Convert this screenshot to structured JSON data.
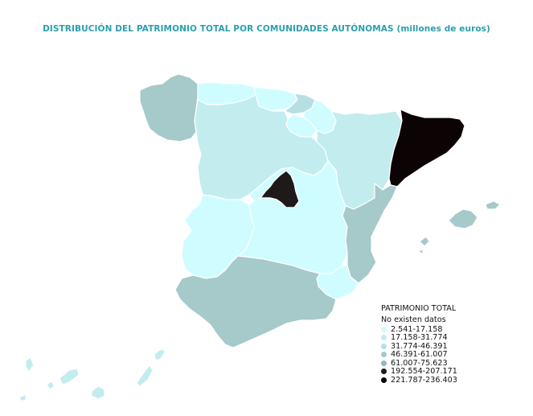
{
  "title": "DISTRIBUCIÓN DEL PATRIMONIO TOTAL POR COMUNIDADES AUTÓNOMAS (millones de euros)",
  "colors": {
    "title": "#2a9fae",
    "c1": "#cffdff",
    "c2": "#c3ecef",
    "c3": "#b7dfe3",
    "c4": "#a6c9ca",
    "c5": "#9ab5b6",
    "c6": "#1f1a1a",
    "c7": "#0c0404"
  },
  "legend": {
    "title": "PATRIMONIO TOTAL",
    "no_data": "No existen datos",
    "items": [
      {
        "label": "2.541-17.158",
        "color": "#cffdff"
      },
      {
        "label": "17.158-31.774",
        "color": "#c3ecef"
      },
      {
        "label": "31.774-46.391",
        "color": "#b7dfe3"
      },
      {
        "label": "46.391-61.007",
        "color": "#a6c9ca"
      },
      {
        "label": "61.007-75.623",
        "color": "#9ab5b6"
      },
      {
        "label": "192.554-207.171",
        "color": "#1f1a1a"
      },
      {
        "label": "221.787-236.403",
        "color": "#0c0404"
      }
    ]
  },
  "regions": [
    {
      "name": "galicia",
      "class": "46.391-61.007"
    },
    {
      "name": "asturias",
      "class": "2.541-17.158"
    },
    {
      "name": "cantabria",
      "class": "2.541-17.158"
    },
    {
      "name": "pais-vasco",
      "class": "31.774-46.391"
    },
    {
      "name": "navarra",
      "class": "2.541-17.158"
    },
    {
      "name": "la-rioja",
      "class": "2.541-17.158"
    },
    {
      "name": "aragon",
      "class": "17.158-31.774"
    },
    {
      "name": "cataluna",
      "class": "221.787-236.403"
    },
    {
      "name": "castilla-y-leon",
      "class": "17.158-31.774"
    },
    {
      "name": "madrid",
      "class": "192.554-207.171"
    },
    {
      "name": "castilla-la-mancha",
      "class": "2.541-17.158"
    },
    {
      "name": "extremadura",
      "class": "2.541-17.158"
    },
    {
      "name": "comunidad-valenciana",
      "class": "46.391-61.007"
    },
    {
      "name": "murcia",
      "class": "2.541-17.158"
    },
    {
      "name": "andalucia",
      "class": "46.391-61.007"
    },
    {
      "name": "islas-baleares",
      "class": "46.391-61.007"
    },
    {
      "name": "islas-canarias",
      "class": "17.158-31.774"
    }
  ]
}
